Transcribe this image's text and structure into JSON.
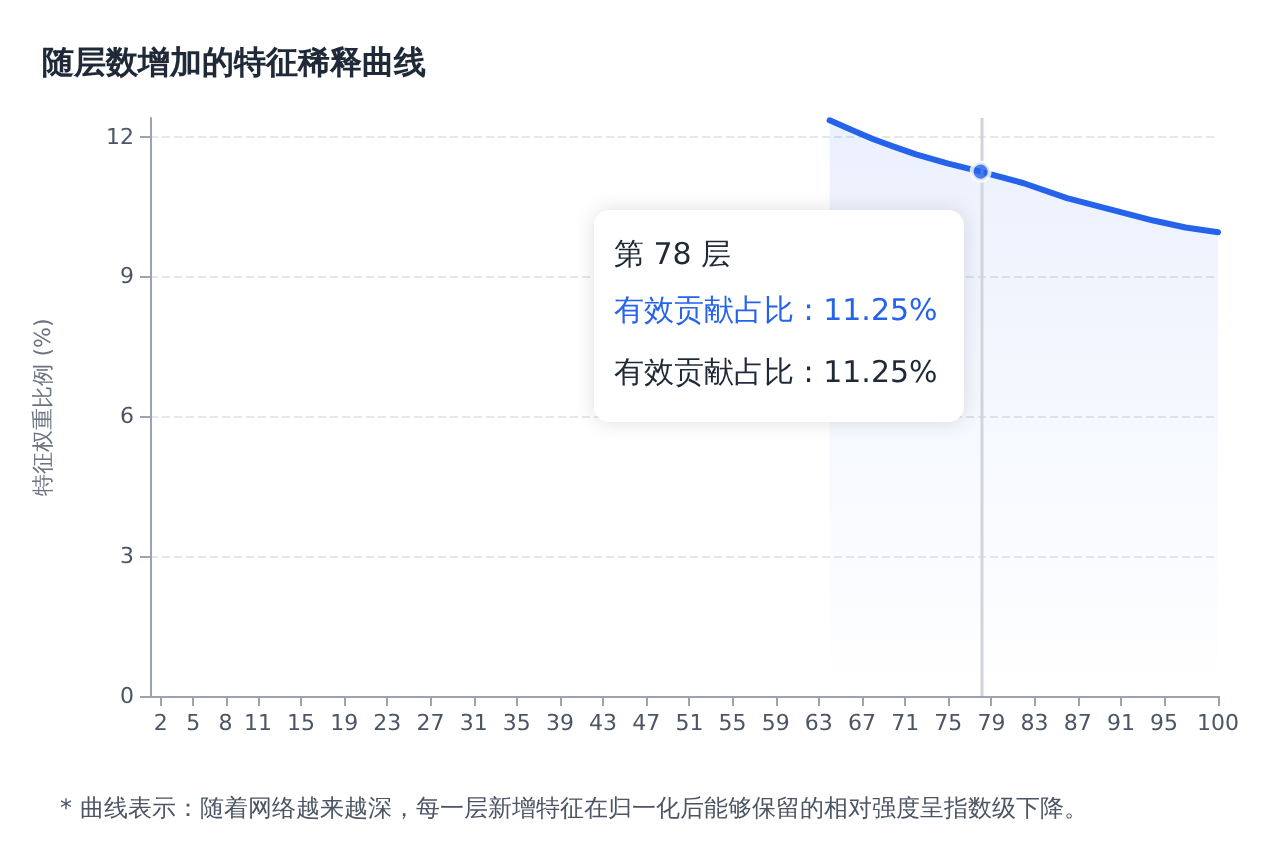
{
  "chart_data": {
    "type": "area",
    "title": "随层数增加的特征稀释曲线",
    "ylabel": "特征权重比例 (%)",
    "x": [
      64,
      66,
      68,
      70,
      72,
      75,
      78,
      82,
      86,
      90,
      94,
      97,
      100
    ],
    "series": [
      {
        "color": "#2563eb",
        "values": [
          12.35,
          12.15,
          11.95,
          11.78,
          11.62,
          11.42,
          11.25,
          11.0,
          10.68,
          10.44,
          10.2,
          10.05,
          9.95
        ]
      },
      {
        "type": "scatter",
        "color": "#2563eb",
        "marker": "circle",
        "x": [
          78
        ],
        "values": [
          11.25
        ]
      }
    ],
    "xlim": [
      1,
      100
    ],
    "xticks": [
      2,
      5,
      8,
      11,
      15,
      19,
      23,
      27,
      31,
      35,
      39,
      43,
      47,
      51,
      55,
      59,
      63,
      67,
      71,
      75,
      79,
      83,
      87,
      91,
      95,
      100
    ],
    "ylim": [
      0,
      12.4
    ],
    "yticks": [
      0,
      3,
      6,
      9,
      12
    ],
    "grid": "y",
    "marker": "none",
    "line_style": "solid",
    "ref_lines": [
      {
        "axis": "x",
        "value": 78,
        "color": "#d1d5db"
      }
    ],
    "annotations": [
      "第 78 层",
      "有效贡献占比 : 11.25%",
      "有效贡献占比 : 11.25%",
      "* 曲线表示：随着网络越来越深，每一层新增特征在归一化后能够保留的相对强度呈指数级下降。"
    ]
  }
}
